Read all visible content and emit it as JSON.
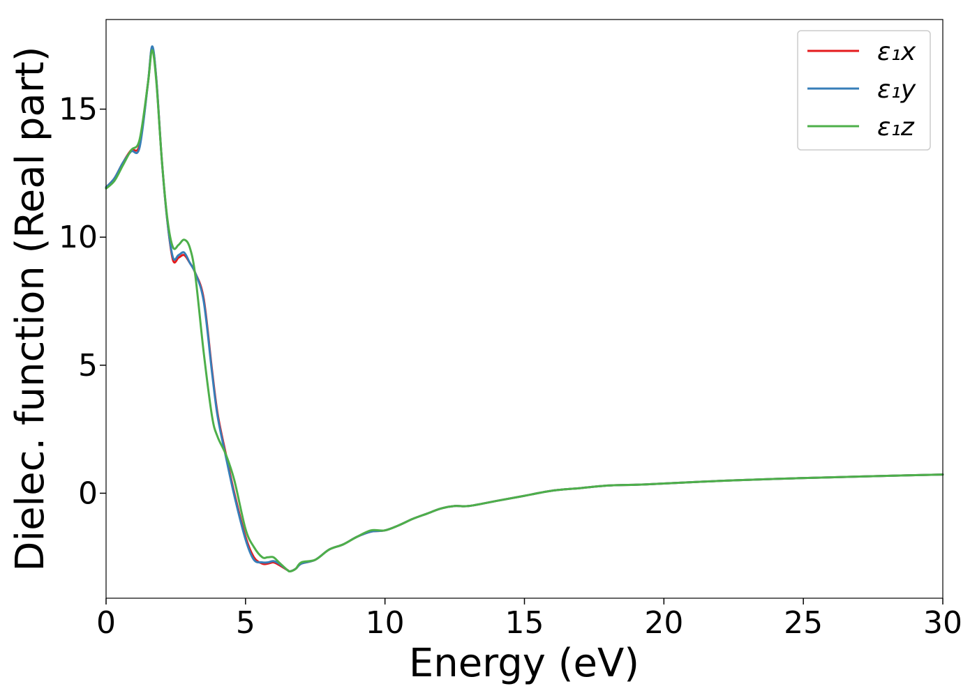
{
  "chart_data": {
    "type": "line",
    "title": "",
    "xlabel": "Energy (eV)",
    "ylabel": "Dielec. function (Real part)",
    "xlim": [
      0,
      30
    ],
    "ylim": [
      -4.1,
      18.5
    ],
    "xticks": [
      0,
      5,
      10,
      15,
      20,
      25,
      30
    ],
    "yticks": [
      0,
      5,
      10,
      15
    ],
    "grid": false,
    "legend_position": "top-right",
    "x": [
      0,
      0.3,
      0.6,
      0.9,
      1.2,
      1.5,
      1.65,
      1.8,
      2.0,
      2.2,
      2.4,
      2.6,
      2.8,
      3.0,
      3.2,
      3.5,
      3.8,
      4.0,
      4.3,
      4.6,
      5.0,
      5.3,
      5.6,
      5.8,
      6.0,
      6.2,
      6.5,
      6.6,
      6.8,
      7.0,
      7.5,
      8.0,
      8.5,
      9.0,
      9.5,
      10.0,
      10.5,
      11.0,
      11.5,
      12.0,
      12.5,
      13.0,
      14.0,
      15.0,
      16.0,
      17.0,
      18.0,
      19.0,
      20.0,
      22.0,
      24.0,
      26.0,
      28.0,
      30.0
    ],
    "series": [
      {
        "name": "ε₁x",
        "color": "#e41a1c",
        "values": [
          11.95,
          12.3,
          12.9,
          13.4,
          13.6,
          16.0,
          17.4,
          16.2,
          13.0,
          10.6,
          9.1,
          9.2,
          9.3,
          9.0,
          8.6,
          7.6,
          4.8,
          3.1,
          1.5,
          0.0,
          -1.7,
          -2.5,
          -2.75,
          -2.75,
          -2.7,
          -2.8,
          -3.0,
          -3.05,
          -2.95,
          -2.75,
          -2.6,
          -2.2,
          -2.0,
          -1.7,
          -1.5,
          -1.45,
          -1.25,
          -1.0,
          -0.8,
          -0.6,
          -0.5,
          -0.5,
          -0.3,
          -0.1,
          0.1,
          0.2,
          0.3,
          0.33,
          0.38,
          0.48,
          0.56,
          0.62,
          0.68,
          0.73
        ]
      },
      {
        "name": "ε₁y",
        "color": "#377eb8",
        "values": [
          11.95,
          12.3,
          12.9,
          13.35,
          13.5,
          16.0,
          17.45,
          16.2,
          13.0,
          10.6,
          9.2,
          9.3,
          9.4,
          9.0,
          8.6,
          7.5,
          4.7,
          3.0,
          1.4,
          -0.1,
          -1.8,
          -2.6,
          -2.7,
          -2.7,
          -2.65,
          -2.75,
          -3.0,
          -3.05,
          -2.95,
          -2.75,
          -2.6,
          -2.2,
          -2.0,
          -1.7,
          -1.5,
          -1.45,
          -1.25,
          -1.0,
          -0.8,
          -0.6,
          -0.5,
          -0.5,
          -0.3,
          -0.1,
          0.1,
          0.2,
          0.3,
          0.33,
          0.38,
          0.48,
          0.56,
          0.62,
          0.68,
          0.73
        ]
      },
      {
        "name": "ε₁z",
        "color": "#4daf4a",
        "values": [
          11.9,
          12.2,
          12.8,
          13.4,
          13.8,
          16.0,
          17.3,
          16.1,
          13.0,
          10.7,
          9.6,
          9.7,
          9.9,
          9.6,
          8.5,
          5.5,
          3.0,
          2.2,
          1.5,
          0.5,
          -1.4,
          -2.1,
          -2.5,
          -2.5,
          -2.5,
          -2.7,
          -3.0,
          -3.05,
          -2.95,
          -2.7,
          -2.6,
          -2.2,
          -2.0,
          -1.7,
          -1.45,
          -1.45,
          -1.25,
          -1.0,
          -0.8,
          -0.6,
          -0.5,
          -0.5,
          -0.3,
          -0.1,
          0.1,
          0.2,
          0.3,
          0.33,
          0.38,
          0.48,
          0.56,
          0.62,
          0.68,
          0.73
        ]
      }
    ]
  }
}
